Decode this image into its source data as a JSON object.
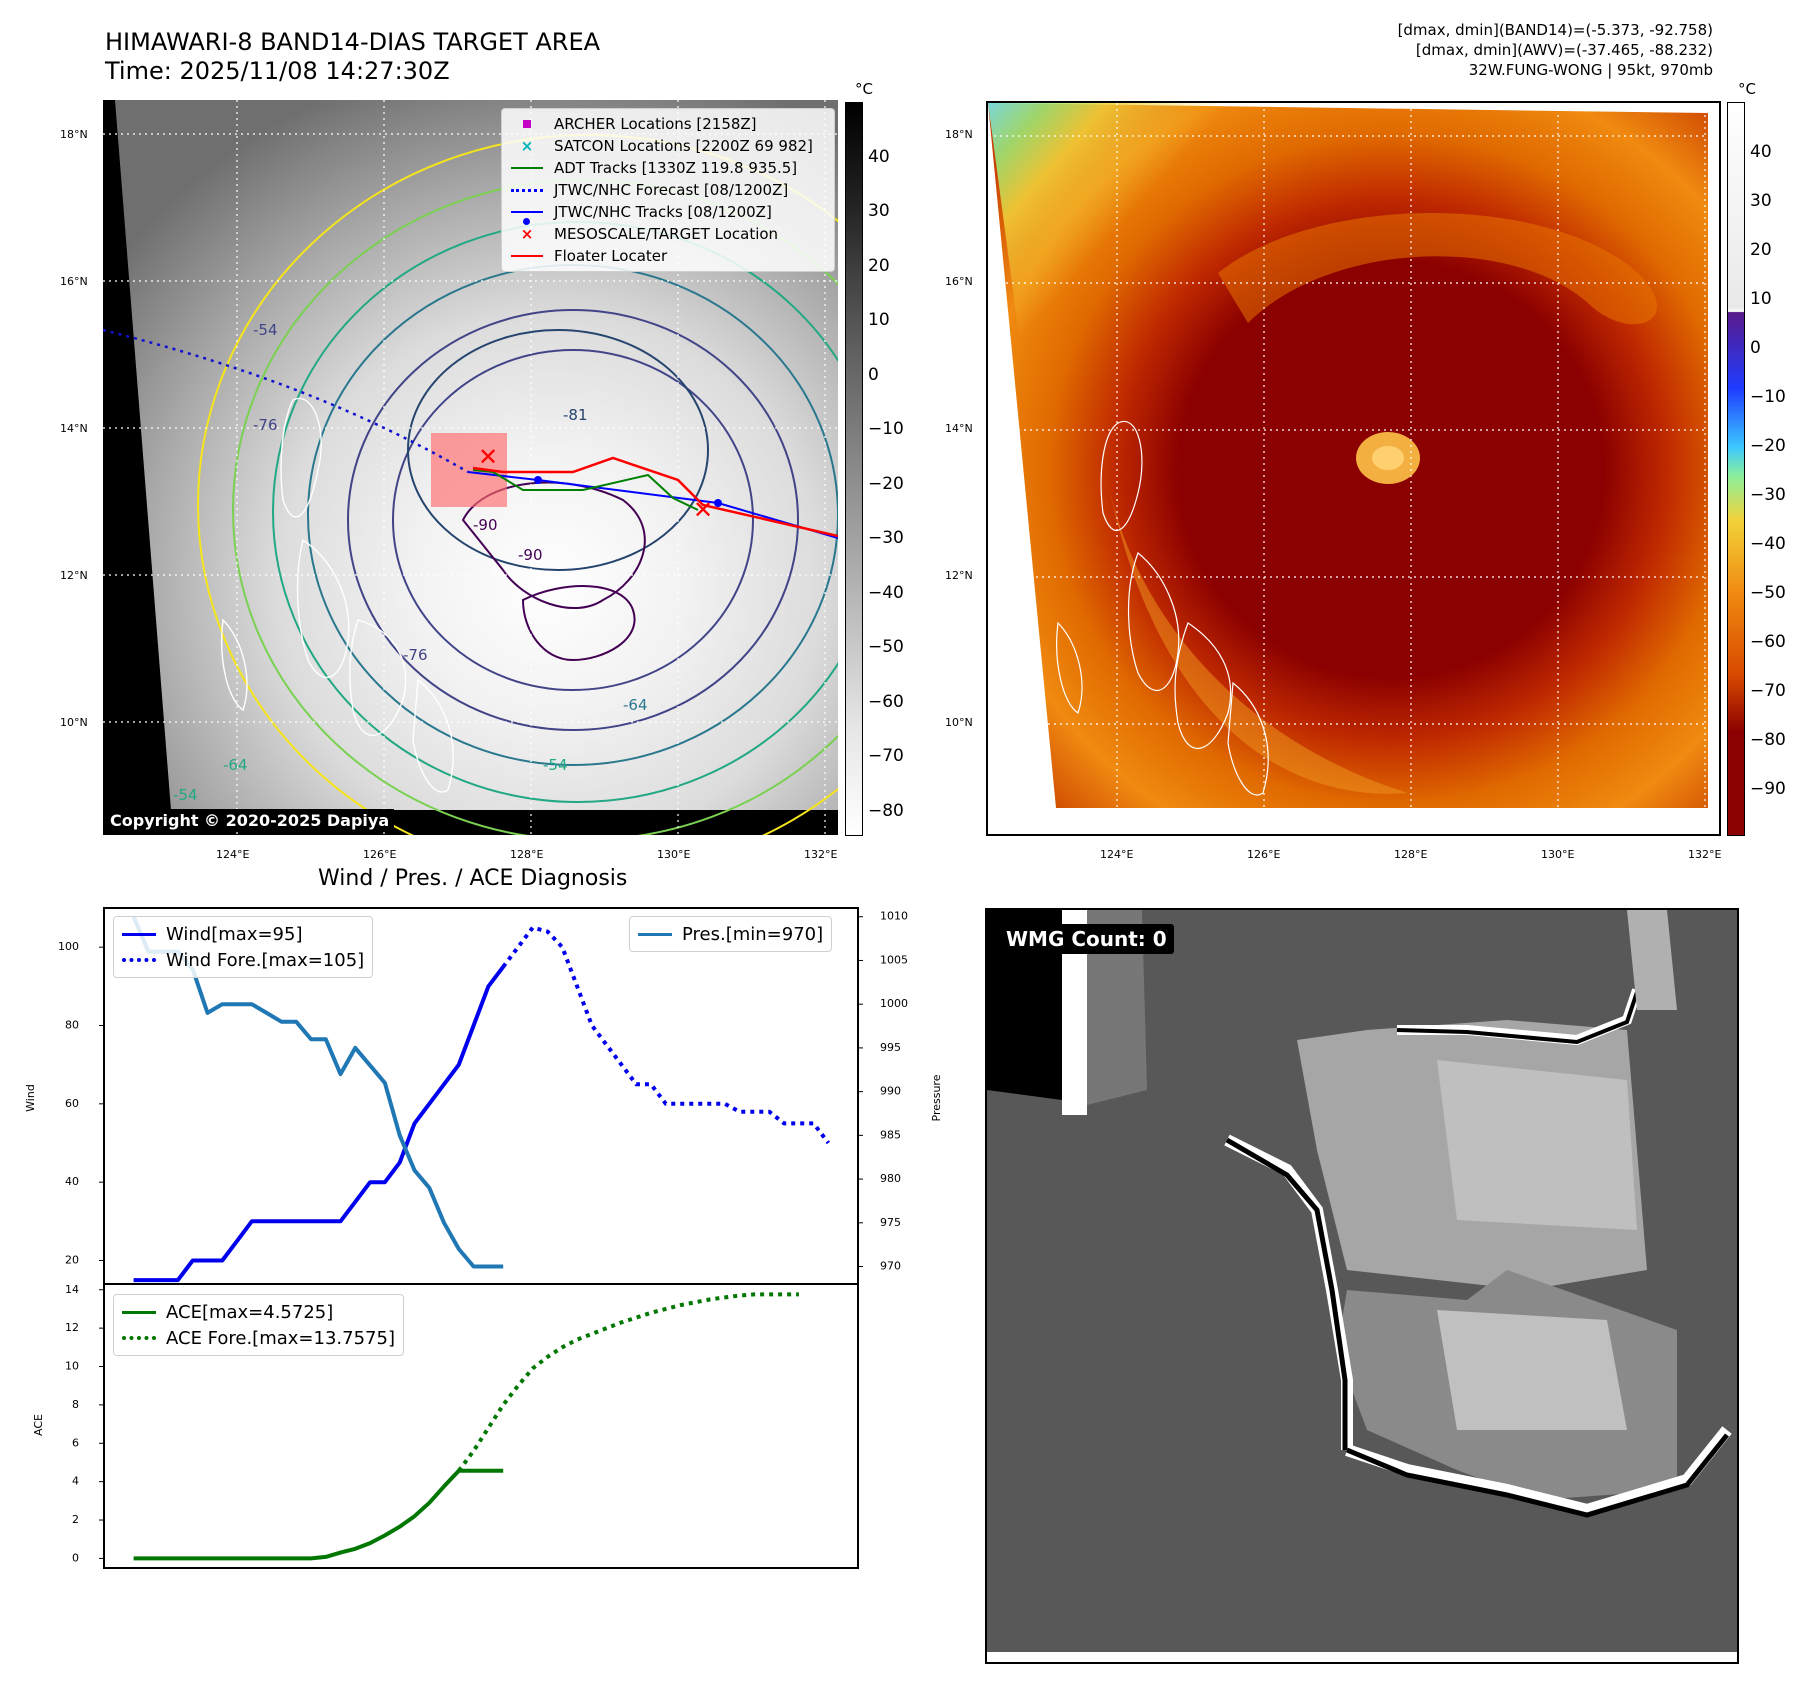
{
  "header": {
    "title_line1": "HIMAWARI-8 BAND14-DIAS TARGET AREA",
    "title_line2": "Time: 2025/11/08 14:27:30Z",
    "info_line1": "[dmax, dmin](BAND14)=(-5.373, -92.758)",
    "info_line2": "[dmax, dmin](AWV)=(-37.465, -88.232)",
    "info_line3": "32W.FUNG-WONG | 95kt, 970mb"
  },
  "map": {
    "lon_ticks": [
      "124°E",
      "126°E",
      "128°E",
      "130°E",
      "132°E"
    ],
    "lat_ticks": [
      "18°N",
      "16°N",
      "14°N",
      "12°N",
      "10°N"
    ],
    "copyright": "Copyright © 2020-2025 Dapiya",
    "contour_labels": [
      "-54",
      "-64",
      "-76",
      "-90",
      "-81",
      "-54",
      "-64",
      "-76",
      "-90",
      "-54"
    ]
  },
  "legend_map": {
    "items": [
      {
        "label": "ARCHER Locations [2158Z]",
        "color": "#c400c4",
        "kind": "square"
      },
      {
        "label": "SATCON Locations [2200Z 69 982]",
        "color": "#00b4b4",
        "kind": "x"
      },
      {
        "label": "ADT Tracks [1330Z 119.8 935.5]",
        "color": "#008000",
        "kind": "line"
      },
      {
        "label": "JTWC/NHC Forecast [08/1200Z]",
        "color": "#0000ff",
        "kind": "dotted"
      },
      {
        "label": "JTWC/NHC Tracks [08/1200Z]",
        "color": "#0000ff",
        "kind": "dotline"
      },
      {
        "label": "MESOSCALE/TARGET Location",
        "color": "#ff0000",
        "kind": "x"
      },
      {
        "label": "Floater Locater",
        "color": "#ff0000",
        "kind": "line"
      }
    ]
  },
  "colorbar_gray": {
    "unit": "°C",
    "ticks": [
      "40",
      "30",
      "20",
      "10",
      "0",
      "−10",
      "−20",
      "−30",
      "−40",
      "−50",
      "−60",
      "−70",
      "−80"
    ]
  },
  "colorbar_color": {
    "unit": "°C",
    "ticks": [
      "40",
      "30",
      "20",
      "10",
      "0",
      "−10",
      "−20",
      "−30",
      "−40",
      "−50",
      "−60",
      "−70",
      "−80",
      "−90"
    ]
  },
  "diag": {
    "title": "Wind / Pres. / ACE Diagnosis",
    "wind_ylabel": "Wind",
    "pres_ylabel": "Pressure",
    "ace_ylabel": "ACE",
    "wind_ticks": [
      "100",
      "80",
      "60",
      "40",
      "20"
    ],
    "pres_ticks": [
      "1010",
      "1005",
      "1000",
      "995",
      "990",
      "985",
      "980",
      "975",
      "970"
    ],
    "ace_ticks": [
      "14",
      "12",
      "10",
      "8",
      "6",
      "4",
      "2",
      "0"
    ],
    "legend_wind": "Wind[max=95]",
    "legend_wind_fore": "Wind Fore.[max=105]",
    "legend_pres": "Pres.[min=970]",
    "legend_ace": "ACE[max=4.5725]",
    "legend_ace_fore": "ACE Fore.[max=13.7575]"
  },
  "wmg": {
    "label": "WMG Count: 0"
  },
  "chart_data": [
    {
      "type": "line",
      "title": "Wind / Pres. / ACE Diagnosis",
      "xlabel": "",
      "ylabel": "Wind",
      "ylim": [
        14,
        110
      ],
      "x": [
        0,
        1,
        2,
        3,
        4,
        5,
        6,
        7,
        8,
        9,
        10,
        11,
        12,
        13,
        14,
        15,
        16,
        17,
        18,
        19,
        20,
        21,
        22,
        23,
        24,
        25,
        26,
        27,
        28,
        29,
        30,
        31,
        32,
        33,
        34,
        35,
        36,
        37,
        38,
        39,
        40,
        41,
        42,
        43,
        44,
        45,
        46,
        47
      ],
      "series": [
        {
          "name": "Wind[max=95]",
          "color": "#0000ee",
          "style": "solid",
          "axis": "left",
          "x": [
            0,
            1,
            2,
            3,
            4,
            5,
            6,
            7,
            8,
            9,
            10,
            11,
            12,
            13,
            14,
            15,
            16,
            17,
            18,
            19,
            20,
            21,
            22,
            23,
            24,
            25
          ],
          "values": [
            15,
            15,
            15,
            15,
            20,
            20,
            20,
            25,
            30,
            30,
            30,
            30,
            30,
            30,
            30,
            35,
            40,
            40,
            45,
            55,
            60,
            65,
            70,
            80,
            90,
            95
          ]
        },
        {
          "name": "Wind Fore.[max=105]",
          "color": "#0000ee",
          "style": "dotted",
          "axis": "left",
          "x": [
            25,
            26,
            27,
            28,
            29,
            30,
            31,
            32,
            33,
            34,
            35,
            36,
            37,
            38,
            39,
            40,
            41,
            42,
            43,
            44,
            45,
            46,
            47
          ],
          "values": [
            95,
            100,
            105,
            104,
            100,
            90,
            80,
            75,
            70,
            65,
            65,
            60,
            60,
            60,
            60,
            60,
            58,
            58,
            58,
            55,
            55,
            55,
            50
          ]
        },
        {
          "name": "Pres.[min=970]",
          "color": "#1f77b4",
          "style": "solid",
          "axis": "right",
          "ylim": [
            968,
            1011
          ],
          "x": [
            0,
            1,
            2,
            3,
            4,
            5,
            6,
            7,
            8,
            9,
            10,
            11,
            12,
            13,
            14,
            15,
            16,
            17,
            18,
            19,
            20,
            21,
            22,
            23,
            24,
            25
          ],
          "values": [
            1010,
            1006,
            1006,
            1006,
            1004,
            999,
            1000,
            1000,
            1000,
            999,
            998,
            998,
            996,
            996,
            992,
            995,
            993,
            991,
            985,
            981,
            979,
            975,
            972,
            970,
            970,
            970
          ]
        },
        {
          "name": "ACE[max=4.5725]",
          "color": "#007700",
          "style": "solid",
          "axis": "ace",
          "ylim": [
            -0.5,
            14.3
          ],
          "x": [
            0,
            1,
            2,
            3,
            4,
            5,
            6,
            7,
            8,
            9,
            10,
            11,
            12,
            13,
            14,
            15,
            16,
            17,
            18,
            19,
            20,
            21,
            22,
            23,
            24,
            25
          ],
          "values": [
            0,
            0,
            0,
            0,
            0,
            0,
            0,
            0,
            0,
            0,
            0,
            0,
            0,
            0.08,
            0.3,
            0.5,
            0.8,
            1.2,
            1.65,
            2.2,
            2.9,
            3.75,
            4.5725,
            4.5725,
            4.5725,
            4.5725
          ]
        },
        {
          "name": "ACE Fore.[max=13.7575]",
          "color": "#007700",
          "style": "dotted",
          "axis": "ace",
          "ylim": [
            -0.5,
            14.3
          ],
          "x": [
            22,
            23,
            24,
            25,
            26,
            27,
            28,
            29,
            30,
            31,
            32,
            33,
            34,
            35,
            36,
            37,
            38,
            39,
            40,
            41,
            42,
            43,
            44,
            45
          ],
          "values": [
            4.5725,
            5.6,
            6.8,
            8.0,
            9.0,
            9.9,
            10.5,
            11.0,
            11.4,
            11.7,
            12.0,
            12.3,
            12.55,
            12.8,
            13.0,
            13.2,
            13.35,
            13.5,
            13.6,
            13.7,
            13.7575,
            13.7575,
            13.7575,
            13.7575
          ]
        }
      ]
    }
  ]
}
